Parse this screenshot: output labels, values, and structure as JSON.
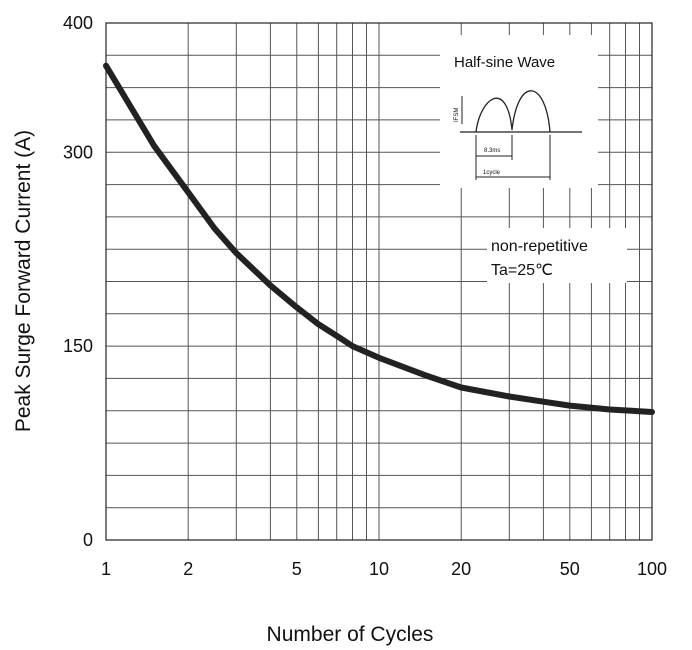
{
  "chart_data": {
    "type": "line",
    "xlabel": "Number of Cycles",
    "ylabel": "Peak Surge Forward Current (A)",
    "xscale": "log",
    "xlim": [
      1,
      100
    ],
    "ylim": [
      0,
      400
    ],
    "grid": true,
    "x_ticks": [
      1,
      2,
      5,
      10,
      20,
      50,
      100
    ],
    "x_tick_labels": [
      "1",
      "2",
      "5",
      "10",
      "20",
      "50",
      "100"
    ],
    "y_ticks": [
      0,
      150,
      300,
      400
    ],
    "y_tick_labels": [
      "0",
      "150",
      "300",
      "400"
    ],
    "series": [
      {
        "x": [
          1,
          1.5,
          2,
          2.5,
          3,
          4,
          5,
          6,
          7,
          8,
          10,
          15,
          20,
          30,
          40,
          50,
          70,
          100
        ],
        "y": [
          367,
          305,
          269,
          241,
          222,
          197,
          180,
          167,
          158,
          150,
          141,
          127,
          118,
          111,
          107,
          104,
          101,
          99
        ]
      }
    ],
    "annotations": {
      "inset_title": "Half-sine Wave",
      "inset_ifsm": "IFSM",
      "inset_half_period": "8.3ms",
      "inset_cycle": "1cycle",
      "condition_line1": "non-repetitive",
      "condition_line2": "Ta=25℃"
    }
  }
}
